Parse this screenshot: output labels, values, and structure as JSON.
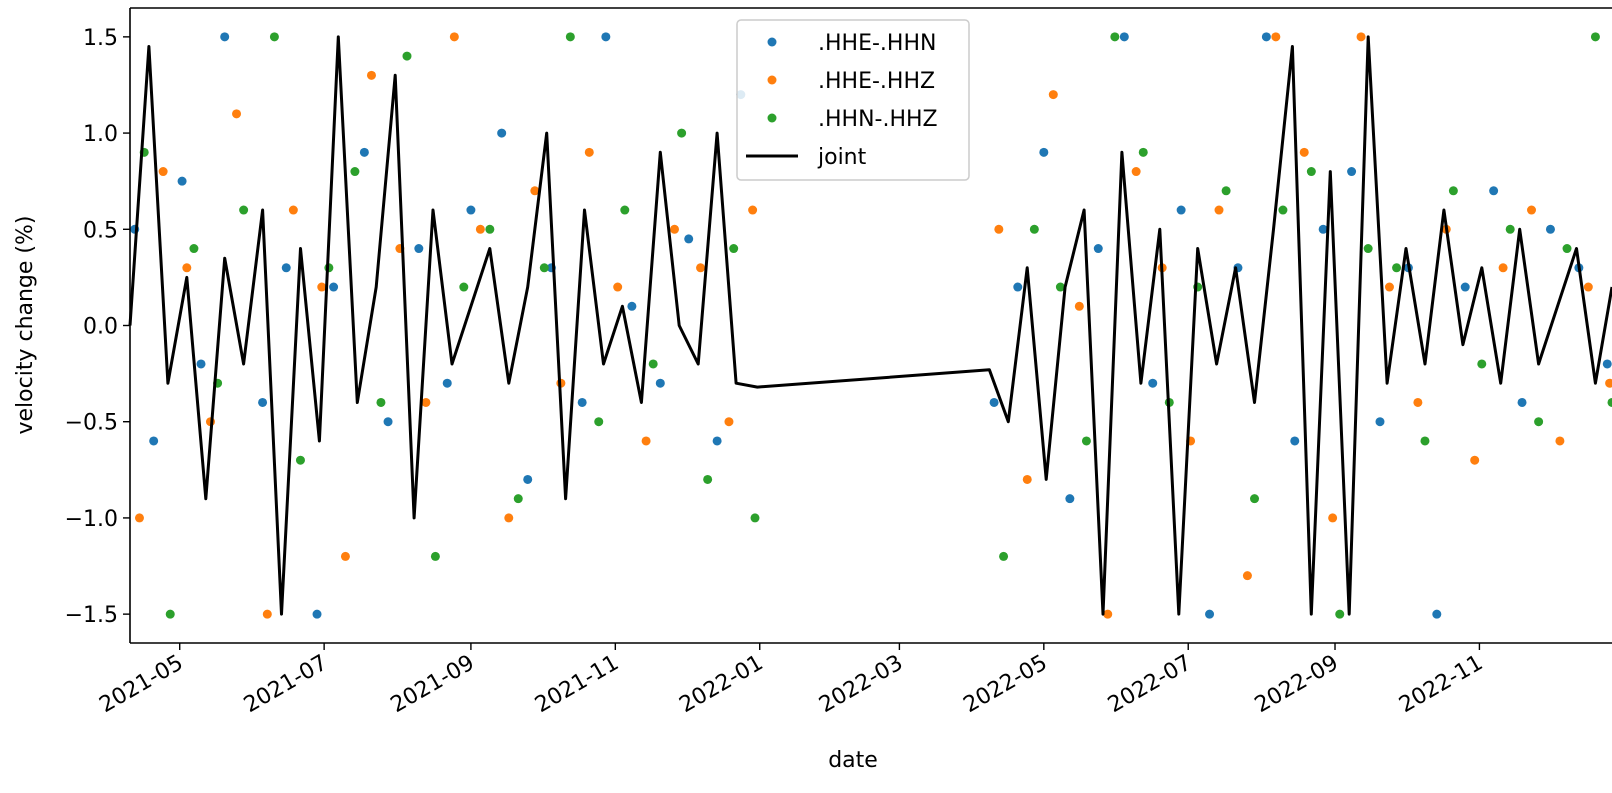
{
  "chart_data": {
    "type": "scatter",
    "title": "",
    "xlabel": "date",
    "ylabel": "velocity change (%)",
    "xlim": [
      "2021-04-10",
      "2022-12-27"
    ],
    "ylim": [
      -1.65,
      1.65
    ],
    "y_ticks": [
      -1.5,
      -1.0,
      -0.5,
      0.0,
      0.5,
      1.0,
      1.5
    ],
    "y_tick_labels": [
      "−1.5",
      "−1.0",
      "−0.5",
      "0.0",
      "0.5",
      "1.0",
      "1.5"
    ],
    "x_ticks": [
      "2021-05-01",
      "2021-07-01",
      "2021-09-01",
      "2021-11-01",
      "2022-01-01",
      "2022-03-01",
      "2022-05-01",
      "2022-07-01",
      "2022-09-01",
      "2022-11-01"
    ],
    "x_tick_labels": [
      "2021-05",
      "2021-07",
      "2021-09",
      "2021-11",
      "2022-01",
      "2022-03",
      "2022-05",
      "2022-07",
      "2022-09",
      "2022-11"
    ],
    "grid": false,
    "legend": "top-center",
    "data_gap": [
      "2021-12-31",
      "2022-04-08"
    ],
    "series": [
      {
        "name": ".HHE-.HHN",
        "kind": "scatter",
        "color": "#1f77b4",
        "x": [
          "2021-04-12",
          "2021-04-20",
          "2021-05-02",
          "2021-05-10",
          "2021-05-20",
          "2021-06-05",
          "2021-06-15",
          "2021-06-28",
          "2021-07-05",
          "2021-07-18",
          "2021-07-28",
          "2021-08-10",
          "2021-08-22",
          "2021-09-01",
          "2021-09-14",
          "2021-09-25",
          "2021-10-05",
          "2021-10-18",
          "2021-10-28",
          "2021-11-08",
          "2021-11-20",
          "2021-12-02",
          "2021-12-14",
          "2021-12-24",
          "2022-04-10",
          "2022-04-20",
          "2022-05-01",
          "2022-05-12",
          "2022-05-24",
          "2022-06-04",
          "2022-06-16",
          "2022-06-28",
          "2022-07-10",
          "2022-07-22",
          "2022-08-03",
          "2022-08-15",
          "2022-08-27",
          "2022-09-08",
          "2022-09-20",
          "2022-10-02",
          "2022-10-14",
          "2022-10-26",
          "2022-11-07",
          "2022-11-19",
          "2022-12-01",
          "2022-12-13",
          "2022-12-25"
        ],
        "y": [
          0.5,
          -0.6,
          0.75,
          -0.2,
          1.5,
          -0.4,
          0.3,
          -1.5,
          0.2,
          0.9,
          -0.5,
          0.4,
          -0.3,
          0.6,
          1.0,
          -0.8,
          0.3,
          -0.4,
          1.5,
          0.1,
          -0.3,
          0.45,
          -0.6,
          1.2,
          -0.4,
          0.2,
          0.9,
          -0.9,
          0.4,
          1.5,
          -0.3,
          0.6,
          -1.5,
          0.3,
          1.5,
          -0.6,
          0.5,
          0.8,
          -0.5,
          0.3,
          -1.5,
          0.2,
          0.7,
          -0.4,
          0.5,
          0.3,
          -0.2
        ]
      },
      {
        "name": ".HHE-.HHZ",
        "kind": "scatter",
        "color": "#ff7f0e",
        "x": [
          "2021-04-14",
          "2021-04-24",
          "2021-05-04",
          "2021-05-14",
          "2021-05-25",
          "2021-06-07",
          "2021-06-18",
          "2021-06-30",
          "2021-07-10",
          "2021-07-21",
          "2021-08-02",
          "2021-08-13",
          "2021-08-25",
          "2021-09-05",
          "2021-09-17",
          "2021-09-28",
          "2021-10-09",
          "2021-10-21",
          "2021-11-02",
          "2021-11-14",
          "2021-11-26",
          "2021-12-07",
          "2021-12-19",
          "2021-12-29",
          "2022-04-12",
          "2022-04-24",
          "2022-05-05",
          "2022-05-16",
          "2022-05-28",
          "2022-06-09",
          "2022-06-20",
          "2022-07-02",
          "2022-07-14",
          "2022-07-26",
          "2022-08-07",
          "2022-08-19",
          "2022-08-31",
          "2022-09-12",
          "2022-09-24",
          "2022-10-06",
          "2022-10-18",
          "2022-10-30",
          "2022-11-11",
          "2022-11-23",
          "2022-12-05",
          "2022-12-17",
          "2022-12-26"
        ],
        "y": [
          -1.0,
          0.8,
          0.3,
          -0.5,
          1.1,
          -1.5,
          0.6,
          0.2,
          -1.2,
          1.3,
          0.4,
          -0.4,
          1.5,
          0.5,
          -1.0,
          0.7,
          -0.3,
          0.9,
          0.2,
          -0.6,
          0.5,
          0.3,
          -0.5,
          0.6,
          0.5,
          -0.8,
          1.2,
          0.1,
          -1.5,
          0.8,
          0.3,
          -0.6,
          0.6,
          -1.3,
          1.5,
          0.9,
          -1.0,
          1.5,
          0.2,
          -0.4,
          0.5,
          -0.7,
          0.3,
          0.6,
          -0.6,
          0.2,
          -0.3
        ]
      },
      {
        "name": ".HHN-.HHZ",
        "kind": "scatter",
        "color": "#2ca02c",
        "x": [
          "2021-04-16",
          "2021-04-27",
          "2021-05-07",
          "2021-05-17",
          "2021-05-28",
          "2021-06-10",
          "2021-06-21",
          "2021-07-03",
          "2021-07-14",
          "2021-07-25",
          "2021-08-05",
          "2021-08-17",
          "2021-08-29",
          "2021-09-09",
          "2021-09-21",
          "2021-10-02",
          "2021-10-13",
          "2021-10-25",
          "2021-11-05",
          "2021-11-17",
          "2021-11-29",
          "2021-12-10",
          "2021-12-21",
          "2021-12-30",
          "2022-04-14",
          "2022-04-27",
          "2022-05-08",
          "2022-05-19",
          "2022-05-31",
          "2022-06-12",
          "2022-06-23",
          "2022-07-05",
          "2022-07-17",
          "2022-07-29",
          "2022-08-10",
          "2022-08-22",
          "2022-09-03",
          "2022-09-15",
          "2022-09-27",
          "2022-10-09",
          "2022-10-21",
          "2022-11-02",
          "2022-11-14",
          "2022-11-26",
          "2022-12-08",
          "2022-12-20",
          "2022-12-27"
        ],
        "y": [
          0.9,
          -1.5,
          0.4,
          -0.3,
          0.6,
          1.5,
          -0.7,
          0.3,
          0.8,
          -0.4,
          1.4,
          -1.2,
          0.2,
          0.5,
          -0.9,
          0.3,
          1.5,
          -0.5,
          0.6,
          -0.2,
          1.0,
          -0.8,
          0.4,
          -1.0,
          -1.2,
          0.5,
          0.2,
          -0.6,
          1.5,
          0.9,
          -0.4,
          0.2,
          0.7,
          -0.9,
          0.6,
          0.8,
          -1.5,
          0.4,
          0.3,
          -0.6,
          0.7,
          -0.2,
          0.5,
          -0.5,
          0.4,
          1.5,
          -0.4
        ]
      },
      {
        "name": "joint",
        "kind": "line",
        "color": "#000000",
        "x": [
          "2021-04-10",
          "2021-04-18",
          "2021-04-26",
          "2021-05-04",
          "2021-05-12",
          "2021-05-20",
          "2021-05-28",
          "2021-06-05",
          "2021-06-13",
          "2021-06-21",
          "2021-06-29",
          "2021-07-07",
          "2021-07-15",
          "2021-07-23",
          "2021-07-31",
          "2021-08-08",
          "2021-08-16",
          "2021-08-24",
          "2021-09-01",
          "2021-09-09",
          "2021-09-17",
          "2021-09-25",
          "2021-10-03",
          "2021-10-11",
          "2021-10-19",
          "2021-10-27",
          "2021-11-04",
          "2021-11-12",
          "2021-11-20",
          "2021-11-28",
          "2021-12-06",
          "2021-12-14",
          "2021-12-22",
          "2021-12-31",
          "2022-04-08",
          "2022-04-16",
          "2022-04-24",
          "2022-05-02",
          "2022-05-10",
          "2022-05-18",
          "2022-05-26",
          "2022-06-03",
          "2022-06-11",
          "2022-06-19",
          "2022-06-27",
          "2022-07-05",
          "2022-07-13",
          "2022-07-21",
          "2022-07-29",
          "2022-08-06",
          "2022-08-14",
          "2022-08-22",
          "2022-08-30",
          "2022-09-07",
          "2022-09-15",
          "2022-09-23",
          "2022-10-01",
          "2022-10-09",
          "2022-10-17",
          "2022-10-25",
          "2022-11-02",
          "2022-11-10",
          "2022-11-18",
          "2022-11-26",
          "2022-12-04",
          "2022-12-12",
          "2022-12-20",
          "2022-12-27"
        ],
        "y": [
          0.0,
          1.45,
          -0.3,
          0.25,
          -0.9,
          0.35,
          -0.2,
          0.6,
          -1.5,
          0.4,
          -0.6,
          1.5,
          -0.4,
          0.2,
          1.3,
          -1.0,
          0.6,
          -0.2,
          0.1,
          0.4,
          -0.3,
          0.2,
          1.0,
          -0.9,
          0.6,
          -0.2,
          0.1,
          -0.4,
          0.9,
          0.0,
          -0.2,
          1.0,
          -0.3,
          -0.32,
          -0.23,
          -0.5,
          0.3,
          -0.8,
          0.2,
          0.6,
          -1.5,
          0.9,
          -0.3,
          0.5,
          -1.5,
          0.4,
          -0.2,
          0.3,
          -0.4,
          0.5,
          1.45,
          -1.5,
          0.8,
          -1.5,
          1.5,
          -0.3,
          0.4,
          -0.2,
          0.6,
          -0.1,
          0.3,
          -0.3,
          0.5,
          -0.2,
          0.1,
          0.4,
          -0.3,
          0.2
        ]
      }
    ]
  }
}
